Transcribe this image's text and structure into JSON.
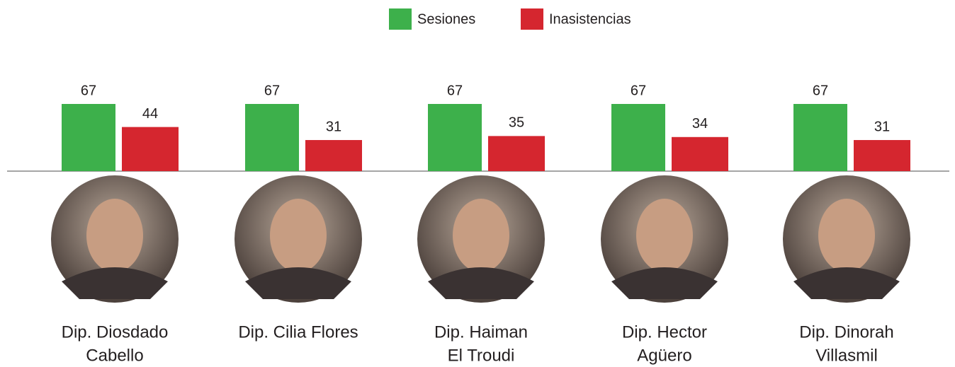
{
  "chart_data": {
    "type": "bar",
    "categories": [
      [
        "Dip. Diosdado",
        "Cabello"
      ],
      [
        "Dip. Cilia Flores"
      ],
      [
        "Dip. Haiman",
        "El Troudi"
      ],
      [
        "Dip. Hector",
        "Agüero"
      ],
      [
        "Dip. Dinorah",
        "Villasmil"
      ]
    ],
    "series": [
      {
        "name": "Sesiones",
        "color": "#3db04b",
        "values": [
          67,
          67,
          67,
          67,
          67
        ]
      },
      {
        "name": "Inasistencias",
        "color": "#d5262f",
        "values": [
          44,
          31,
          35,
          34,
          31
        ]
      }
    ],
    "legend": "top"
  }
}
